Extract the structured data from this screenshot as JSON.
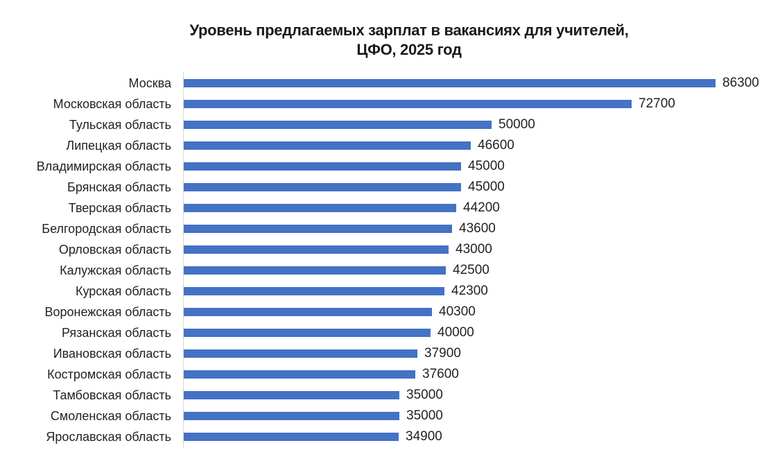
{
  "chart_data": {
    "type": "bar",
    "orientation": "horizontal",
    "title": "Уровень предлагаемых зарплат в вакансиях для учителей, ЦФО, 2025 год",
    "title_lines": [
      "Уровень предлагаемых зарплат в вакансиях для учителей,",
      "ЦФО, 2025 год"
    ],
    "xlabel": "",
    "ylabel": "",
    "xlim": [
      0,
      86300
    ],
    "grid": false,
    "legend": null,
    "bar_color": "#4472c4",
    "categories": [
      "Москва",
      "Московская область",
      "Тульская область",
      "Липецкая область",
      "Владимирская область",
      "Брянская область",
      "Тверская область",
      "Белгородская область",
      "Орловская область",
      "Калужская область",
      "Курская область",
      "Воронежская область",
      "Рязанская область",
      "Ивановская область",
      "Костромская область",
      "Тамбовская область",
      "Смоленская область",
      "Ярославская область"
    ],
    "values": [
      86300,
      72700,
      50000,
      46600,
      45000,
      45000,
      44200,
      43600,
      43000,
      42500,
      42300,
      40300,
      40000,
      37900,
      37600,
      35000,
      35000,
      34900
    ]
  }
}
